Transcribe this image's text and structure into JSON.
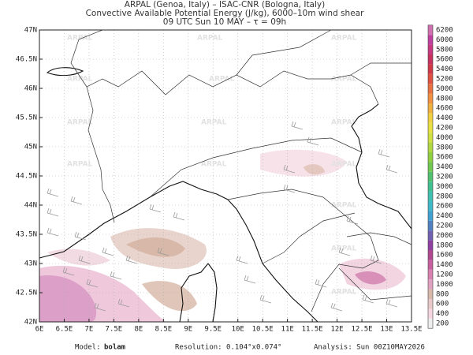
{
  "header": {
    "lines": [
      "ARPAL (Genoa, Italy)  –  ISAC-CNR (Bologna, Italy)",
      "Convective Available Potential Energy (J/kg), 6000–10m wind shear",
      "09 UTC Sun 10 MAY  –  τ = 09h"
    ]
  },
  "map": {
    "xlim": [
      6,
      13.5
    ],
    "ylim": [
      42,
      47
    ],
    "xticks": [
      {
        "value": 6,
        "label": "6E"
      },
      {
        "value": 6.5,
        "label": "6.5E"
      },
      {
        "value": 7,
        "label": "7E"
      },
      {
        "value": 7.5,
        "label": "7.5E"
      },
      {
        "value": 8,
        "label": "8E"
      },
      {
        "value": 8.5,
        "label": "8.5E"
      },
      {
        "value": 9,
        "label": "9E"
      },
      {
        "value": 9.5,
        "label": "9.5E"
      },
      {
        "value": 10,
        "label": "10E"
      },
      {
        "value": 10.5,
        "label": "10.5E"
      },
      {
        "value": 11,
        "label": "11E"
      },
      {
        "value": 11.5,
        "label": "11.5E"
      },
      {
        "value": 12,
        "label": "12E"
      },
      {
        "value": 12.5,
        "label": "12.5E"
      },
      {
        "value": 13,
        "label": "13E"
      },
      {
        "value": 13.5,
        "label": "13.5E"
      }
    ],
    "yticks": [
      {
        "value": 42,
        "label": "42N"
      },
      {
        "value": 42.5,
        "label": "42.5N"
      },
      {
        "value": 43,
        "label": "43N"
      },
      {
        "value": 43.5,
        "label": "43.5N"
      },
      {
        "value": 44,
        "label": "44N"
      },
      {
        "value": 44.5,
        "label": "44.5N"
      },
      {
        "value": 45,
        "label": "45N"
      },
      {
        "value": 45.5,
        "label": "45.5N"
      },
      {
        "value": 46,
        "label": "46N"
      },
      {
        "value": 46.5,
        "label": "46.5N"
      },
      {
        "value": 47,
        "label": "47N"
      }
    ],
    "grid": true,
    "watermark": "ARPAL"
  },
  "colorbar": {
    "levels": [
      200,
      400,
      600,
      800,
      1000,
      1200,
      1400,
      1600,
      1800,
      2000,
      2200,
      2400,
      2600,
      2800,
      3000,
      3200,
      3400,
      3600,
      3800,
      4000,
      4200,
      4400,
      4600,
      4800,
      5000,
      5200,
      5400,
      5600,
      5800,
      6000,
      6200
    ],
    "colors": [
      "#eeeeee",
      "#f5d5e0",
      "#e8c8c8",
      "#d8b8a8",
      "#e0a0c0",
      "#d880b0",
      "#c860a0",
      "#b04890",
      "#9040a0",
      "#7060b0",
      "#5080c0",
      "#40a0d0",
      "#40b8c8",
      "#40c0b0",
      "#40c090",
      "#50c070",
      "#70c850",
      "#90d040",
      "#b0d840",
      "#d0e040",
      "#e8e040",
      "#f0d040",
      "#f0b040",
      "#f09040",
      "#e87040",
      "#e05040",
      "#d03848",
      "#c83060",
      "#c83880",
      "#c040a0",
      "#d070b0"
    ]
  },
  "footer": {
    "model_label": "Model:",
    "model": "bolam",
    "resolution": "Resolution: 0.104°x0.074°",
    "analysis": "Analysis: Sun 00Z10MAY2026"
  }
}
